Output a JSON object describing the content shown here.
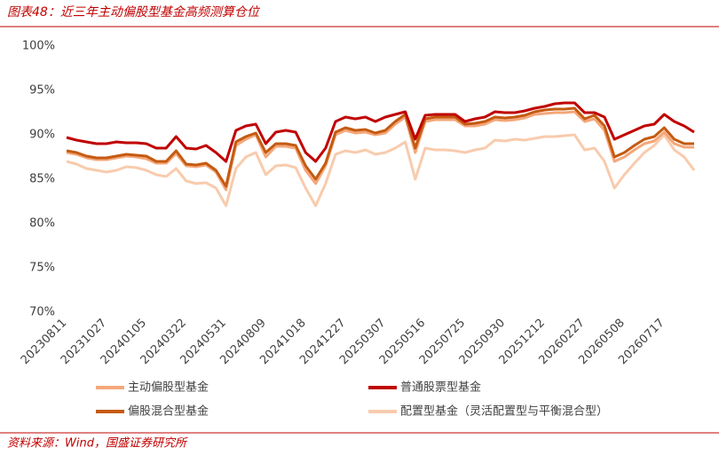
{
  "chart_data": {
    "type": "line",
    "title": "图表48：近三年主动偏股型基金高频测算仓位",
    "source": "资料来源：Wind，国盛证券研究所",
    "categories": [
      "20230811",
      null,
      null,
      null,
      "20231027",
      null,
      null,
      null,
      "20240105",
      null,
      null,
      null,
      "20240322",
      null,
      null,
      null,
      "20240531",
      null,
      null,
      null,
      "20240809",
      null,
      null,
      null,
      "20241018",
      null,
      null,
      null,
      "20241227",
      null,
      null,
      null,
      "20250307",
      null,
      null,
      null,
      "20250516",
      null,
      null,
      null,
      "20250725",
      null,
      null,
      null,
      "20250930",
      null,
      null,
      null,
      "20251212",
      null,
      null,
      null,
      "20260227",
      null,
      null,
      null,
      "20260508",
      null,
      null,
      null,
      "20260717",
      null,
      null,
      null
    ],
    "ylim": [
      70,
      100
    ],
    "yticks": [
      {
        "value": 70,
        "label": "70%"
      },
      {
        "value": 75,
        "label": "75%"
      },
      {
        "value": 80,
        "label": "80%"
      },
      {
        "value": 85,
        "label": "85%"
      },
      {
        "value": 90,
        "label": "90%"
      },
      {
        "value": 95,
        "label": "95%"
      },
      {
        "value": 100,
        "label": "100%"
      }
    ],
    "grid": false,
    "series": [
      {
        "name": "主动偏股型基金",
        "color": "#f4a77a",
        "values": [
          88.0,
          87.8,
          87.4,
          87.2,
          87.2,
          87.4,
          87.6,
          87.5,
          87.3,
          86.8,
          86.8,
          87.9,
          86.5,
          86.4,
          86.6,
          85.8,
          83.8,
          88.8,
          89.5,
          90.0,
          87.5,
          88.7,
          88.7,
          88.5,
          86.0,
          84.5,
          86.5,
          90.0,
          90.5,
          90.2,
          90.3,
          90.0,
          90.2,
          91.2,
          92.0,
          88.0,
          91.5,
          91.7,
          91.7,
          91.7,
          91.0,
          91.0,
          91.2,
          91.7,
          91.6,
          91.7,
          91.9,
          92.3,
          92.4,
          92.5,
          92.5,
          92.6,
          91.5,
          91.8,
          90.5,
          87.0,
          87.5,
          88.3,
          89.0,
          89.3,
          90.3,
          89.0,
          88.6,
          88.6
        ]
      },
      {
        "name": "普通股票型基金",
        "color": "#c00000",
        "values": [
          89.7,
          89.4,
          89.2,
          89.0,
          89.0,
          89.2,
          89.1,
          89.1,
          89.0,
          88.5,
          88.5,
          89.8,
          88.5,
          88.4,
          88.8,
          88.0,
          87.0,
          90.5,
          91.0,
          91.2,
          89.0,
          90.3,
          90.5,
          90.3,
          88.0,
          87.0,
          88.5,
          91.5,
          92.0,
          91.8,
          92.0,
          91.5,
          92.0,
          92.3,
          92.6,
          89.5,
          92.2,
          92.3,
          92.3,
          92.3,
          91.5,
          91.8,
          92.0,
          92.6,
          92.5,
          92.5,
          92.7,
          93.0,
          93.2,
          93.5,
          93.6,
          93.6,
          92.5,
          92.5,
          92.0,
          89.5,
          90.0,
          90.5,
          91.0,
          91.2,
          92.3,
          91.5,
          91.0,
          90.3
        ]
      },
      {
        "name": "偏股混合型基金",
        "color": "#c55a11",
        "values": [
          88.2,
          88.0,
          87.6,
          87.4,
          87.4,
          87.6,
          87.8,
          87.7,
          87.6,
          87.0,
          87.0,
          88.2,
          86.7,
          86.6,
          86.8,
          86.0,
          84.2,
          89.2,
          89.8,
          90.2,
          88.0,
          89.0,
          89.0,
          88.8,
          86.5,
          85.0,
          86.8,
          90.3,
          90.8,
          90.5,
          90.6,
          90.2,
          90.5,
          91.5,
          92.3,
          88.5,
          91.8,
          92.0,
          92.0,
          92.0,
          91.2,
          91.3,
          91.5,
          92.0,
          91.9,
          92.0,
          92.2,
          92.6,
          92.8,
          92.9,
          92.9,
          93.0,
          91.8,
          92.2,
          91.0,
          87.5,
          88.0,
          88.8,
          89.5,
          89.8,
          90.8,
          89.5,
          89.0,
          89.0
        ]
      },
      {
        "name": "配置型基金（灵活配置型与平衡混合型）",
        "color": "#f8cbad",
        "values": [
          87.0,
          86.7,
          86.2,
          86.0,
          85.8,
          86.0,
          86.4,
          86.3,
          86.0,
          85.5,
          85.3,
          86.2,
          84.8,
          84.5,
          84.6,
          84.0,
          82.0,
          86.2,
          87.5,
          88.0,
          85.5,
          86.5,
          86.6,
          86.3,
          84.0,
          82.0,
          84.5,
          87.8,
          88.2,
          88.0,
          88.3,
          87.8,
          88.0,
          88.5,
          89.2,
          85.0,
          88.5,
          88.3,
          88.3,
          88.2,
          88.0,
          88.3,
          88.5,
          89.4,
          89.3,
          89.5,
          89.4,
          89.6,
          89.8,
          89.8,
          89.9,
          90.0,
          88.3,
          88.5,
          87.0,
          84.0,
          85.5,
          86.8,
          88.0,
          88.8,
          90.0,
          88.3,
          87.5,
          86.0
        ]
      }
    ]
  }
}
